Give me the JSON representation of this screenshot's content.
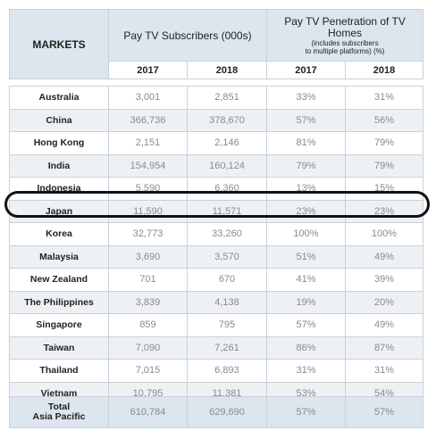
{
  "header": {
    "markets_label": "MARKETS",
    "subscribers_label": "Pay TV Subscribers (000s)",
    "penetration_label": "Pay TV Penetration of TV Homes",
    "penetration_note_1": "(includes subscribers",
    "penetration_note_2": "to multiple platforms) (%)",
    "years": [
      "2017",
      "2018",
      "2017",
      "2018"
    ]
  },
  "rows": [
    {
      "market": "Australia",
      "sub_2017": "3,001",
      "sub_2018": "2,851",
      "pen_2017": "33%",
      "pen_2018": "31%"
    },
    {
      "market": "China",
      "sub_2017": "366,736",
      "sub_2018": "378,670",
      "pen_2017": "57%",
      "pen_2018": "56%"
    },
    {
      "market": "Hong Kong",
      "sub_2017": "2,151",
      "sub_2018": "2,146",
      "pen_2017": "81%",
      "pen_2018": "79%"
    },
    {
      "market": "India",
      "sub_2017": "154,954",
      "sub_2018": "160,124",
      "pen_2017": "79%",
      "pen_2018": "79%"
    },
    {
      "market": "Indonesia",
      "sub_2017": "5,590",
      "sub_2018": "6,360",
      "pen_2017": "13%",
      "pen_2018": "15%"
    },
    {
      "market": "Japan",
      "sub_2017": "11,590",
      "sub_2018": "11,571",
      "pen_2017": "23%",
      "pen_2018": "23%"
    },
    {
      "market": "Korea",
      "sub_2017": "32,773",
      "sub_2018": "33,260",
      "pen_2017": "100%",
      "pen_2018": "100%"
    },
    {
      "market": "Malaysia",
      "sub_2017": "3,690",
      "sub_2018": "3,570",
      "pen_2017": "51%",
      "pen_2018": "49%"
    },
    {
      "market": "New Zealand",
      "sub_2017": "701",
      "sub_2018": "670",
      "pen_2017": "41%",
      "pen_2018": "39%"
    },
    {
      "market": "The Philippines",
      "sub_2017": "3,839",
      "sub_2018": "4,138",
      "pen_2017": "19%",
      "pen_2018": "20%"
    },
    {
      "market": "Singapore",
      "sub_2017": "859",
      "sub_2018": "795",
      "pen_2017": "57%",
      "pen_2018": "49%"
    },
    {
      "market": "Taiwan",
      "sub_2017": "7,090",
      "sub_2018": "7,261",
      "pen_2017": "86%",
      "pen_2018": "87%"
    },
    {
      "market": "Thailand",
      "sub_2017": "7,015",
      "sub_2018": "6,893",
      "pen_2017": "31%",
      "pen_2018": "31%"
    },
    {
      "market": "Vietnam",
      "sub_2017": "10,795",
      "sub_2018": "11,381",
      "pen_2017": "53%",
      "pen_2018": "54%"
    }
  ],
  "total": {
    "market_line1": "Total",
    "market_line2": "Asia Pacific",
    "sub_2017": "610,784",
    "sub_2018": "629,690",
    "pen_2017": "57%",
    "pen_2018": "57%"
  },
  "colors": {
    "header_bg": "#dde5ee",
    "stripe_bg": "#eef1f4",
    "highlight_border": "#111111"
  }
}
